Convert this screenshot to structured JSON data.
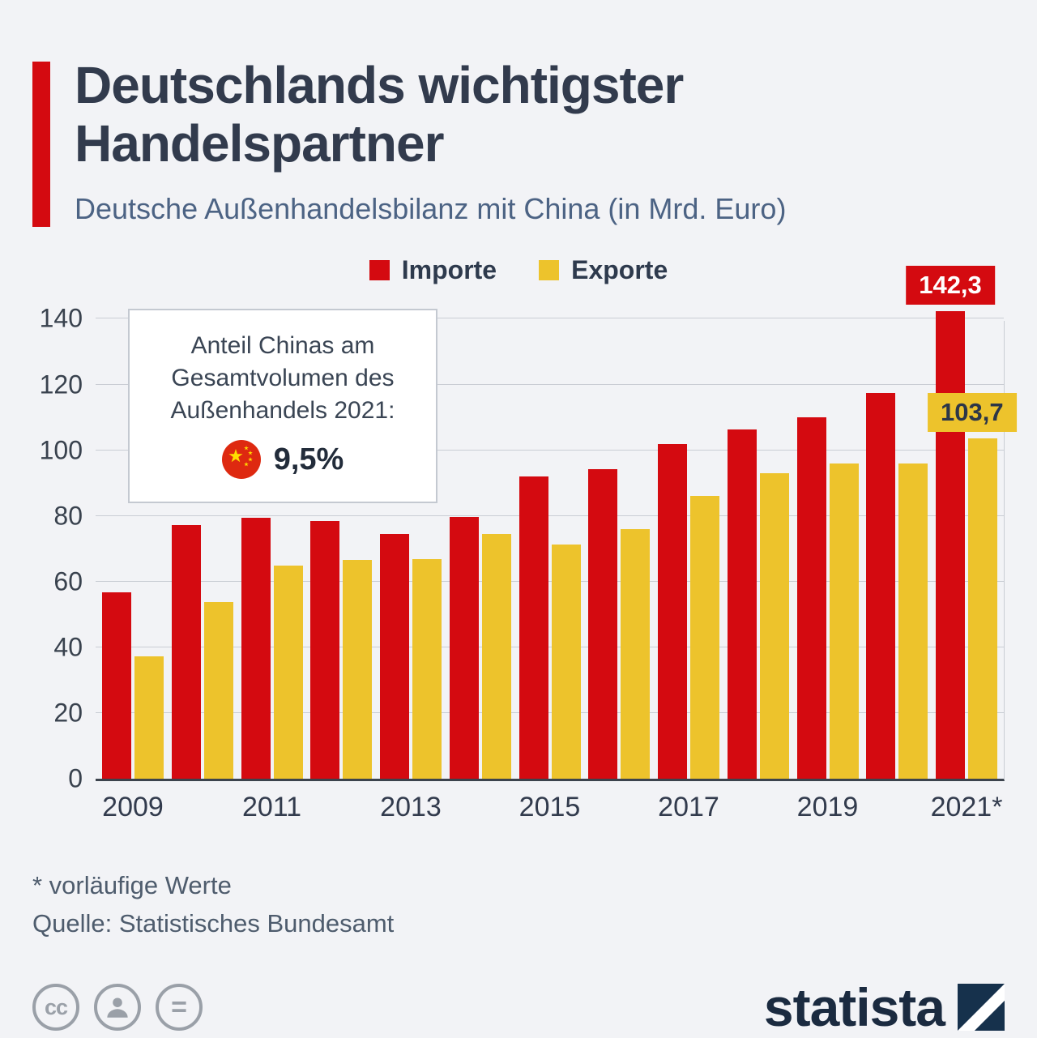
{
  "header": {
    "title_line1": "Deutschlands wichtigster",
    "title_line2": "Handelspartner",
    "subtitle": "Deutsche Außenhandelsbilanz mit China (in Mrd. Euro)"
  },
  "legend": [
    {
      "label": "Importe",
      "color": "#d40a10"
    },
    {
      "label": "Exporte",
      "color": "#edc32c"
    }
  ],
  "annotation": {
    "lines": [
      "Anteil Chinas am",
      "Gesamtvolumen des",
      "Außenhandels 2021:"
    ],
    "flag_icon": "china-flag-icon",
    "value": "9,5%"
  },
  "chart_data": {
    "type": "bar",
    "categories": [
      2009,
      2010,
      2011,
      2012,
      2013,
      2014,
      2015,
      2016,
      2017,
      2018,
      2019,
      2020,
      2021
    ],
    "x_tick_labels": [
      "2009",
      "2011",
      "2013",
      "2015",
      "2017",
      "2019",
      "2021*"
    ],
    "series": [
      {
        "name": "Importe",
        "color": "#d40a10",
        "values": [
          56.7,
          77.3,
          79.5,
          78.5,
          74.5,
          79.8,
          91.9,
          94.2,
          101.8,
          106.2,
          110.1,
          117.3,
          142.3
        ]
      },
      {
        "name": "Exporte",
        "color": "#edc32c",
        "values": [
          37.3,
          53.8,
          64.9,
          66.6,
          67.0,
          74.5,
          71.4,
          76.1,
          86.2,
          93.1,
          96.0,
          95.9,
          103.7
        ]
      }
    ],
    "value_labels": [
      {
        "series_index": 0,
        "category_index": 12,
        "text": "142,3"
      },
      {
        "series_index": 1,
        "category_index": 12,
        "text": "103,7"
      }
    ],
    "title": "Deutsche Außenhandelsbilanz mit China (in Mrd. Euro)",
    "xlabel": "",
    "ylabel": "",
    "ylim": [
      0,
      140
    ],
    "yticks": [
      0,
      20,
      40,
      60,
      80,
      100,
      120,
      140
    ],
    "grid": true,
    "legend_position": "top"
  },
  "footer": {
    "note": "* vorläufige Werte",
    "source": "Quelle: Statistisches Bundesamt"
  },
  "branding": {
    "logo_text": "statista"
  },
  "colors": {
    "import_red": "#d40a10",
    "export_yellow": "#edc32c",
    "background": "#f2f3f6",
    "title_text": "#323b4d",
    "subtitle_text": "#4c6384"
  }
}
